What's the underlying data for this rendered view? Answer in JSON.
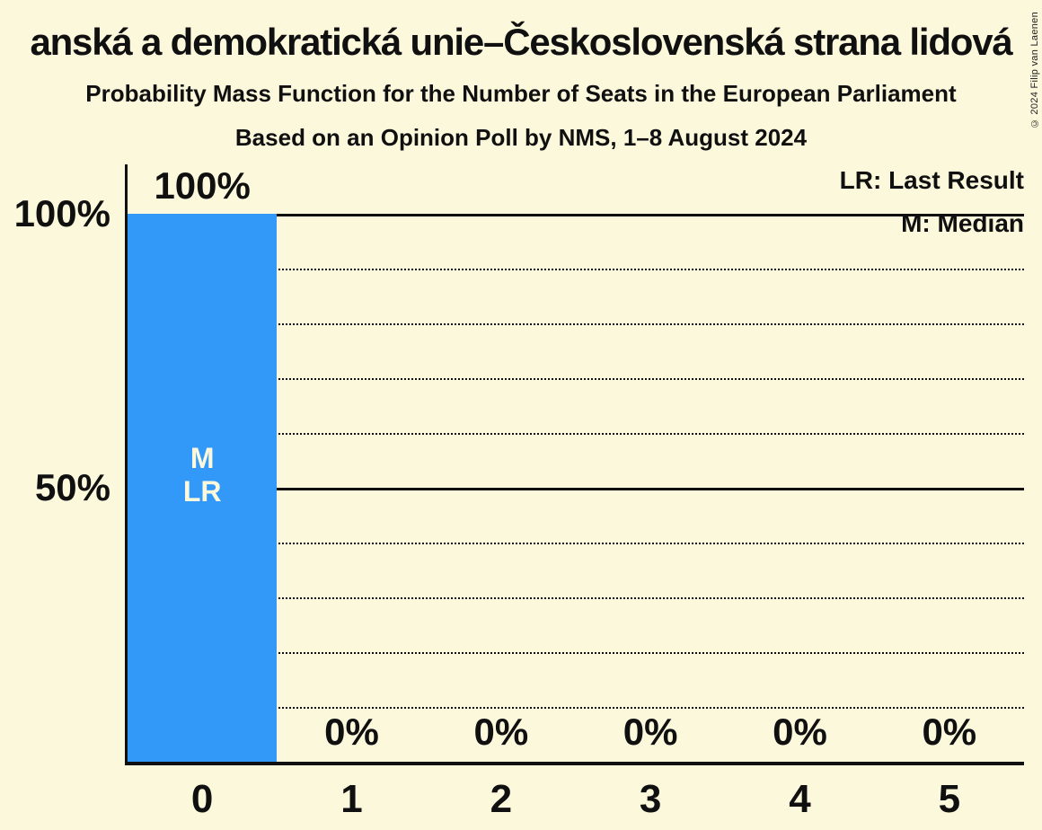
{
  "copyright": "© 2024 Filip van Laenen",
  "colors": {
    "background": "#FCF8DC",
    "bar": "#3399F8",
    "text": "#101010",
    "bar_marker_text": "#FCF8DC"
  },
  "chart_data": {
    "type": "bar",
    "title": "anská a demokratická unie–Československá strana lidová",
    "subtitle": "Probability Mass Function for the Number of Seats in the European Parliament",
    "poll_info": "Based on an Opinion Poll by NMS, 1–8 August 2024",
    "xlabel": "",
    "ylabel": "",
    "categories": [
      "0",
      "1",
      "2",
      "3",
      "4",
      "5"
    ],
    "values": [
      100,
      0,
      0,
      0,
      0,
      0
    ],
    "bar_labels": [
      "100%",
      "0%",
      "0%",
      "0%",
      "0%",
      "0%"
    ],
    "ylim": [
      0,
      100
    ],
    "ytick_labels": [
      "100%",
      "50%"
    ],
    "solid_gridlines_pct": [
      100,
      50
    ],
    "dotted_gridlines_pct": [
      90,
      80,
      70,
      60,
      40,
      30,
      20,
      10
    ],
    "legend": [
      "LR: Last Result",
      "M: Median"
    ],
    "legend_position": "top-right",
    "bar_annotations": [
      [
        "M",
        "LR"
      ],
      [],
      [],
      [],
      [],
      []
    ],
    "median_seat": "0",
    "last_result_seat": "0"
  }
}
